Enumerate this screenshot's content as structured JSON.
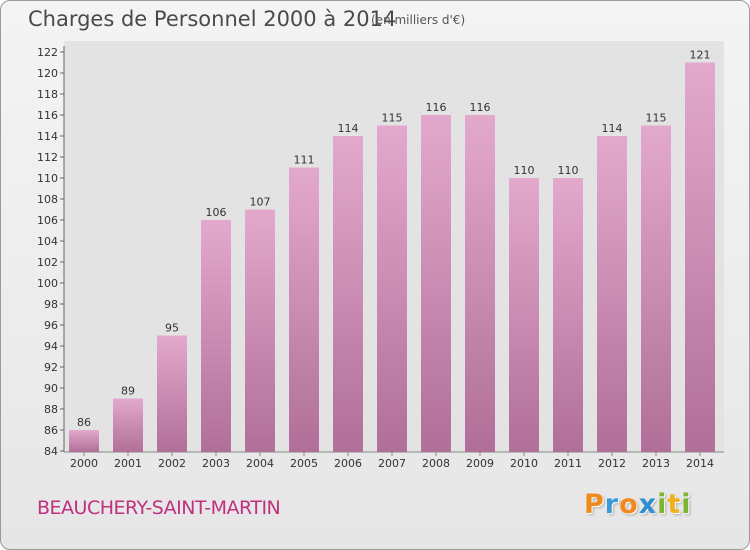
{
  "header": {
    "title": "Charges de Personnel 2000 à 2014",
    "subtitle": "(en milliers d'€)"
  },
  "footer": {
    "city": "BEAUCHERY-SAINT-MARTIN",
    "logo": [
      "P",
      "r",
      "o",
      "x",
      "i",
      "t",
      "i"
    ]
  },
  "colors": {
    "bar_top": "#e3a9cc",
    "bar_bottom": "#b06f98",
    "city_text": "#c0307f",
    "logo_letters": [
      "#f08a1c",
      "#3b9bd6",
      "#f08a1c",
      "#2c8fd0",
      "#7bb531",
      "#f0b01c",
      "#7bb531"
    ]
  },
  "chart_data": {
    "type": "bar",
    "title": "Charges de Personnel 2000 à 2014",
    "subtitle": "(en milliers d'€)",
    "categories": [
      "2000",
      "2001",
      "2002",
      "2003",
      "2004",
      "2005",
      "2006",
      "2007",
      "2008",
      "2009",
      "2010",
      "2011",
      "2012",
      "2013",
      "2014"
    ],
    "values": [
      86,
      89,
      95,
      106,
      107,
      111,
      114,
      115,
      116,
      116,
      110,
      110,
      114,
      115,
      121
    ],
    "ylim": [
      84,
      122
    ],
    "ytick_step": 2,
    "grid": false,
    "legend": "none",
    "xlabel": "",
    "ylabel": ""
  }
}
